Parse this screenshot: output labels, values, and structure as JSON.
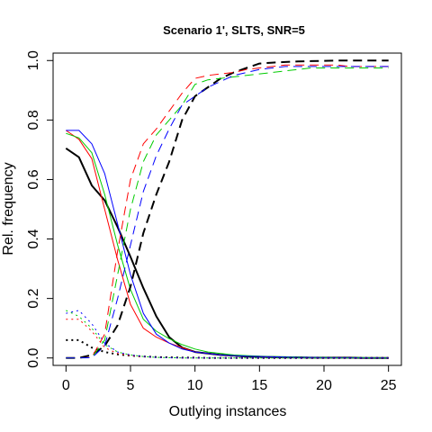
{
  "chart_data": {
    "type": "line",
    "title": "Scenario 1', SLTS, SNR=5",
    "xlabel": "Outlying instances",
    "ylabel": "Rel. frequency",
    "xlim": [
      -1,
      26
    ],
    "ylim": [
      -0.025,
      1.025
    ],
    "xticks": [
      0,
      5,
      10,
      15,
      20,
      25
    ],
    "yticks": [
      0.0,
      0.2,
      0.4,
      0.6,
      0.8,
      1.0
    ],
    "xtick_labels": [
      "0",
      "5",
      "10",
      "15",
      "20",
      "25"
    ],
    "ytick_labels": [
      "0.0",
      "0.2",
      "0.4",
      "0.6",
      "0.8",
      "1.0"
    ],
    "grid": false,
    "legend": "none",
    "x": [
      0,
      1,
      2,
      3,
      4,
      5,
      6,
      7,
      8,
      9,
      10,
      11,
      12,
      13,
      14,
      15,
      16,
      17,
      18,
      19,
      20,
      21,
      22,
      23,
      24,
      25
    ],
    "series": [
      {
        "color": "#000000",
        "style": "solid",
        "width": 2,
        "values": [
          0.705,
          0.675,
          0.58,
          0.53,
          0.44,
          0.34,
          0.235,
          0.14,
          0.07,
          0.035,
          0.02,
          0.015,
          0.01,
          0.008,
          0.005,
          0.004,
          0.003,
          0.002,
          0.002,
          0.001,
          0.001,
          0.001,
          0.001,
          0.0,
          0.0,
          0.0
        ]
      },
      {
        "color": "#ff0000",
        "style": "solid",
        "width": 1,
        "values": [
          0.765,
          0.735,
          0.67,
          0.5,
          0.33,
          0.18,
          0.1,
          0.07,
          0.05,
          0.035,
          0.02,
          0.015,
          0.01,
          0.008,
          0.006,
          0.005,
          0.004,
          0.003,
          0.002,
          0.002,
          0.001,
          0.001,
          0.001,
          0.0,
          0.0,
          0.0
        ]
      },
      {
        "color": "#00cc00",
        "style": "solid",
        "width": 1,
        "values": [
          0.755,
          0.74,
          0.69,
          0.55,
          0.38,
          0.23,
          0.13,
          0.09,
          0.065,
          0.045,
          0.03,
          0.02,
          0.015,
          0.01,
          0.008,
          0.006,
          0.005,
          0.004,
          0.003,
          0.002,
          0.002,
          0.001,
          0.001,
          0.001,
          0.0,
          0.0
        ]
      },
      {
        "color": "#0000ff",
        "style": "solid",
        "width": 1,
        "values": [
          0.765,
          0.765,
          0.72,
          0.62,
          0.45,
          0.28,
          0.15,
          0.08,
          0.05,
          0.03,
          0.02,
          0.015,
          0.01,
          0.008,
          0.006,
          0.005,
          0.004,
          0.003,
          0.002,
          0.002,
          0.001,
          0.001,
          0.001,
          0.0,
          0.0,
          0.0
        ]
      },
      {
        "color": "#000000",
        "style": "dotted",
        "width": 2,
        "values": [
          0.06,
          0.06,
          0.035,
          0.02,
          0.012,
          0.008,
          0.005,
          0.003,
          0.002,
          0.001,
          0.001,
          0.0,
          0.0,
          0.0,
          0.0,
          0.0,
          0.0,
          0.0,
          0.0,
          0.0,
          0.0,
          0.0,
          0.0,
          0.0,
          0.0,
          0.0
        ]
      },
      {
        "color": "#ff0000",
        "style": "dotted",
        "width": 1,
        "values": [
          0.13,
          0.13,
          0.09,
          0.035,
          0.015,
          0.008,
          0.004,
          0.002,
          0.001,
          0.0,
          0.0,
          0.0,
          0.0,
          0.0,
          0.0,
          0.0,
          0.0,
          0.0,
          0.0,
          0.0,
          0.0,
          0.0,
          0.0,
          0.0,
          0.0,
          0.0
        ]
      },
      {
        "color": "#00cc00",
        "style": "dotted",
        "width": 1,
        "values": [
          0.16,
          0.14,
          0.1,
          0.045,
          0.02,
          0.01,
          0.005,
          0.002,
          0.001,
          0.0,
          0.0,
          0.0,
          0.0,
          0.0,
          0.0,
          0.0,
          0.0,
          0.0,
          0.0,
          0.0,
          0.0,
          0.0,
          0.0,
          0.0,
          0.0,
          0.0
        ]
      },
      {
        "color": "#0000ff",
        "style": "dotted",
        "width": 1,
        "values": [
          0.15,
          0.16,
          0.115,
          0.05,
          0.02,
          0.01,
          0.005,
          0.002,
          0.001,
          0.0,
          0.0,
          0.0,
          0.0,
          0.0,
          0.0,
          0.0,
          0.0,
          0.0,
          0.0,
          0.0,
          0.0,
          0.0,
          0.0,
          0.0,
          0.0,
          0.0
        ]
      },
      {
        "color": "#000000",
        "style": "dashed",
        "width": 2,
        "values": [
          0.0,
          0.0,
          0.01,
          0.04,
          0.11,
          0.24,
          0.42,
          0.55,
          0.66,
          0.8,
          0.88,
          0.91,
          0.94,
          0.96,
          0.975,
          0.99,
          0.993,
          0.995,
          0.997,
          0.998,
          0.999,
          1.0,
          1.0,
          1.0,
          1.0,
          1.0
        ]
      },
      {
        "color": "#ff0000",
        "style": "dashed",
        "width": 1,
        "values": [
          0.0,
          0.0,
          0.002,
          0.08,
          0.36,
          0.6,
          0.72,
          0.77,
          0.83,
          0.89,
          0.94,
          0.95,
          0.955,
          0.96,
          0.97,
          0.975,
          0.98,
          0.985,
          0.985,
          0.985,
          0.985,
          0.985,
          0.98,
          0.98,
          0.98,
          0.98
        ]
      },
      {
        "color": "#00cc00",
        "style": "dashed",
        "width": 1,
        "values": [
          0.0,
          0.0,
          0.001,
          0.06,
          0.28,
          0.5,
          0.66,
          0.75,
          0.8,
          0.85,
          0.92,
          0.935,
          0.94,
          0.945,
          0.95,
          0.955,
          0.96,
          0.965,
          0.97,
          0.975,
          0.975,
          0.975,
          0.975,
          0.975,
          0.975,
          0.975
        ]
      },
      {
        "color": "#0000ff",
        "style": "dashed",
        "width": 1,
        "values": [
          0.0,
          0.0,
          0.001,
          0.04,
          0.2,
          0.38,
          0.56,
          0.68,
          0.77,
          0.85,
          0.88,
          0.91,
          0.93,
          0.95,
          0.96,
          0.97,
          0.975,
          0.98,
          0.98,
          0.98,
          0.98,
          0.98,
          0.98,
          0.98,
          0.98,
          0.98
        ]
      }
    ]
  }
}
